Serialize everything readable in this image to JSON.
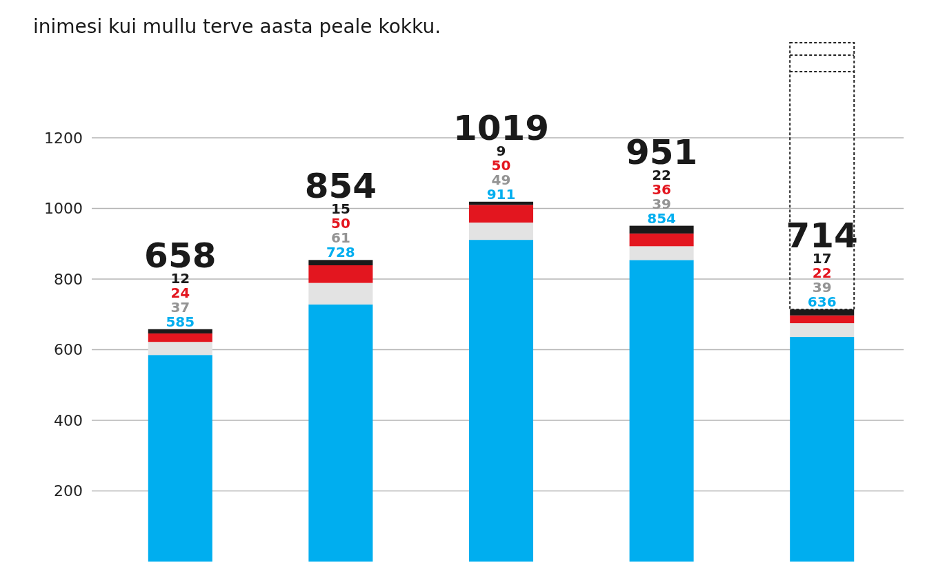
{
  "chart_data": {
    "type": "bar",
    "subtitle": "inimesi kui mullu terve aasta peale kokku.",
    "categories": [
      null,
      null,
      null,
      null,
      null
    ],
    "stacked": true,
    "data_labels": true,
    "series": [
      {
        "color": "#00aeef",
        "values": [
          585,
          728,
          911,
          854,
          636
        ]
      },
      {
        "color": "#e3e3e3",
        "values": [
          37,
          61,
          49,
          39,
          39
        ]
      },
      {
        "color": "#e3161f",
        "values": [
          24,
          50,
          50,
          36,
          22
        ]
      },
      {
        "color": "#1a1a1a",
        "values": [
          12,
          15,
          9,
          22,
          17
        ]
      }
    ],
    "totals": [
      "658",
      "854",
      "1019",
      "951",
      "714"
    ],
    "ylim": [
      0,
      1200
    ],
    "yticks": [
      200,
      400,
      600,
      800,
      1000,
      1200
    ],
    "grid": "y"
  }
}
